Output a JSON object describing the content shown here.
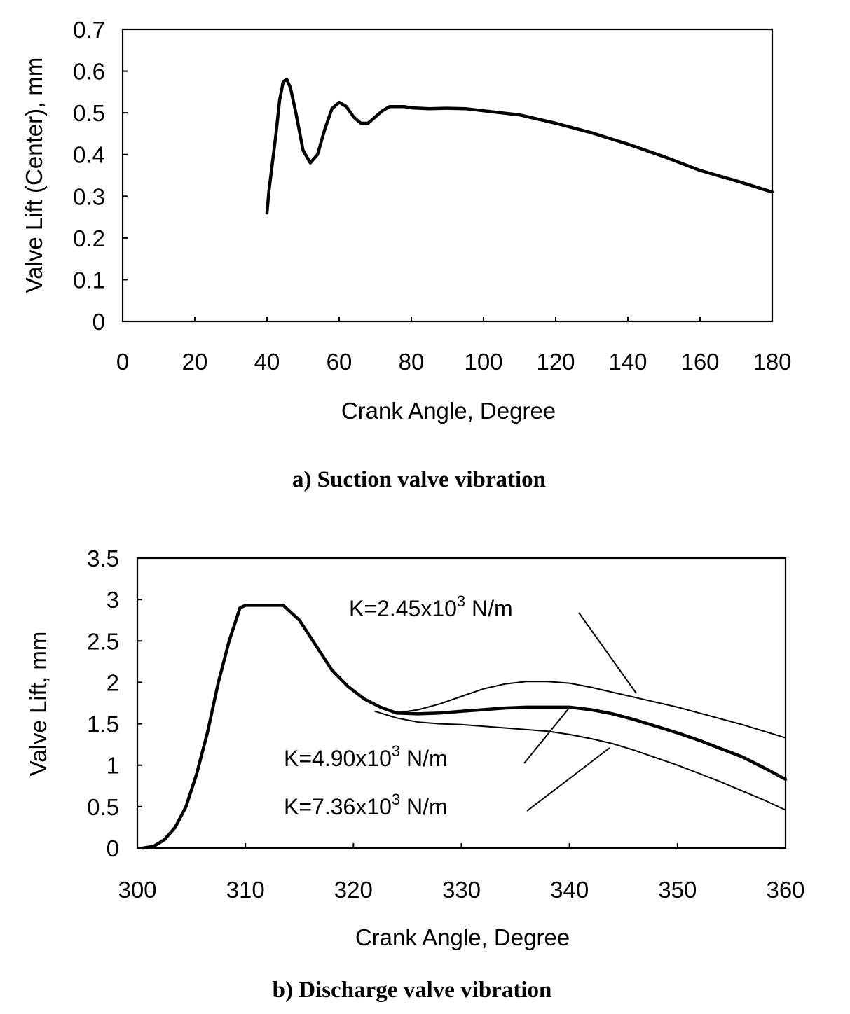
{
  "chart_data": [
    {
      "type": "line",
      "caption": "a) Suction valve vibration",
      "xlabel": "Crank Angle, Degree",
      "ylabel": "Valve Lift (Center), mm",
      "xlim": [
        0,
        180
      ],
      "ylim": [
        0,
        0.7
      ],
      "xticks": [
        "0",
        "20",
        "40",
        "60",
        "80",
        "100",
        "120",
        "140",
        "160",
        "180"
      ],
      "yticks": [
        "0",
        "0.1",
        "0.2",
        "0.3",
        "0.4",
        "0.5",
        "0.6",
        "0.7"
      ],
      "grid": false,
      "series": [
        {
          "line_width": "thick",
          "points": [
            [
              40,
              0.26
            ],
            [
              40.5,
              0.31
            ],
            [
              41.5,
              0.38
            ],
            [
              42.5,
              0.45
            ],
            [
              43.5,
              0.53
            ],
            [
              44.5,
              0.575
            ],
            [
              45.5,
              0.58
            ],
            [
              46.5,
              0.56
            ],
            [
              48,
              0.5
            ],
            [
              50,
              0.41
            ],
            [
              52,
              0.38
            ],
            [
              54,
              0.4
            ],
            [
              56,
              0.46
            ],
            [
              58,
              0.51
            ],
            [
              60,
              0.525
            ],
            [
              62,
              0.515
            ],
            [
              64,
              0.49
            ],
            [
              66,
              0.475
            ],
            [
              68,
              0.475
            ],
            [
              70,
              0.49
            ],
            [
              72,
              0.505
            ],
            [
              74,
              0.515
            ],
            [
              76,
              0.515
            ],
            [
              78,
              0.515
            ],
            [
              80,
              0.512
            ],
            [
              85,
              0.51
            ],
            [
              90,
              0.511
            ],
            [
              95,
              0.51
            ],
            [
              100,
              0.505
            ],
            [
              110,
              0.495
            ],
            [
              120,
              0.475
            ],
            [
              130,
              0.452
            ],
            [
              140,
              0.425
            ],
            [
              150,
              0.395
            ],
            [
              160,
              0.362
            ],
            [
              170,
              0.337
            ],
            [
              180,
              0.31
            ]
          ]
        }
      ]
    },
    {
      "type": "line",
      "caption": "b) Discharge valve vibration",
      "xlabel": "Crank Angle, Degree",
      "ylabel": "Valve Lift, mm",
      "xlim": [
        300,
        360
      ],
      "ylim": [
        0,
        3.5
      ],
      "xticks": [
        "300",
        "310",
        "320",
        "330",
        "340",
        "350",
        "360"
      ],
      "yticks": [
        "0",
        "0.5",
        "1",
        "1.5",
        "2",
        "2.5",
        "3",
        "3.5"
      ],
      "grid": false,
      "annotations": [
        {
          "label": "K=2.45x10",
          "sup": "3",
          "unit": " N/m"
        },
        {
          "label": "K=4.90x10",
          "sup": "3",
          "unit": " N/m"
        },
        {
          "label": "K=7.36x10",
          "sup": "3",
          "unit": " N/m"
        }
      ],
      "series": [
        {
          "line_width": "thick",
          "points": [
            [
              300.5,
              0
            ],
            [
              301.5,
              0.02
            ],
            [
              302.5,
              0.1
            ],
            [
              303.5,
              0.25
            ],
            [
              304.5,
              0.5
            ],
            [
              305.5,
              0.9
            ],
            [
              306.5,
              1.4
            ],
            [
              307.5,
              2.0
            ],
            [
              308.5,
              2.5
            ],
            [
              309.5,
              2.9
            ],
            [
              310,
              2.93
            ],
            [
              313.5,
              2.93
            ],
            [
              315,
              2.75
            ],
            [
              316.5,
              2.45
            ],
            [
              318,
              2.15
            ],
            [
              319.5,
              1.95
            ],
            [
              321,
              1.8
            ],
            [
              322.5,
              1.7
            ],
            [
              324,
              1.63
            ]
          ]
        },
        {
          "line_width": "thin",
          "points": [
            [
              324,
              1.63
            ],
            [
              326,
              1.67
            ],
            [
              328,
              1.74
            ],
            [
              330,
              1.83
            ],
            [
              332,
              1.92
            ],
            [
              334,
              1.98
            ],
            [
              336,
              2.01
            ],
            [
              338,
              2.01
            ],
            [
              340,
              1.99
            ],
            [
              342,
              1.94
            ],
            [
              344,
              1.88
            ],
            [
              346,
              1.82
            ],
            [
              348,
              1.76
            ],
            [
              350,
              1.7
            ],
            [
              352,
              1.63
            ],
            [
              354,
              1.56
            ],
            [
              356,
              1.49
            ],
            [
              358,
              1.41
            ],
            [
              360,
              1.33
            ]
          ]
        },
        {
          "line_width": "thick",
          "points": [
            [
              324,
              1.63
            ],
            [
              326,
              1.62
            ],
            [
              328,
              1.63
            ],
            [
              330,
              1.65
            ],
            [
              332,
              1.67
            ],
            [
              334,
              1.69
            ],
            [
              336,
              1.7
            ],
            [
              338,
              1.7
            ],
            [
              340,
              1.7
            ],
            [
              342,
              1.67
            ],
            [
              344,
              1.62
            ],
            [
              346,
              1.55
            ],
            [
              348,
              1.47
            ],
            [
              350,
              1.39
            ],
            [
              352,
              1.3
            ],
            [
              354,
              1.2
            ],
            [
              356,
              1.1
            ],
            [
              358,
              0.97
            ],
            [
              360,
              0.83
            ]
          ]
        },
        {
          "line_width": "thin",
          "points": [
            [
              322,
              1.65
            ],
            [
              324,
              1.57
            ],
            [
              326,
              1.52
            ],
            [
              328,
              1.5
            ],
            [
              330,
              1.49
            ],
            [
              332,
              1.47
            ],
            [
              334,
              1.45
            ],
            [
              336,
              1.43
            ],
            [
              338,
              1.41
            ],
            [
              340,
              1.37
            ],
            [
              342,
              1.32
            ],
            [
              344,
              1.26
            ],
            [
              346,
              1.18
            ],
            [
              348,
              1.09
            ],
            [
              350,
              1.0
            ],
            [
              352,
              0.9
            ],
            [
              354,
              0.8
            ],
            [
              356,
              0.69
            ],
            [
              358,
              0.58
            ],
            [
              360,
              0.46
            ]
          ]
        }
      ]
    }
  ]
}
